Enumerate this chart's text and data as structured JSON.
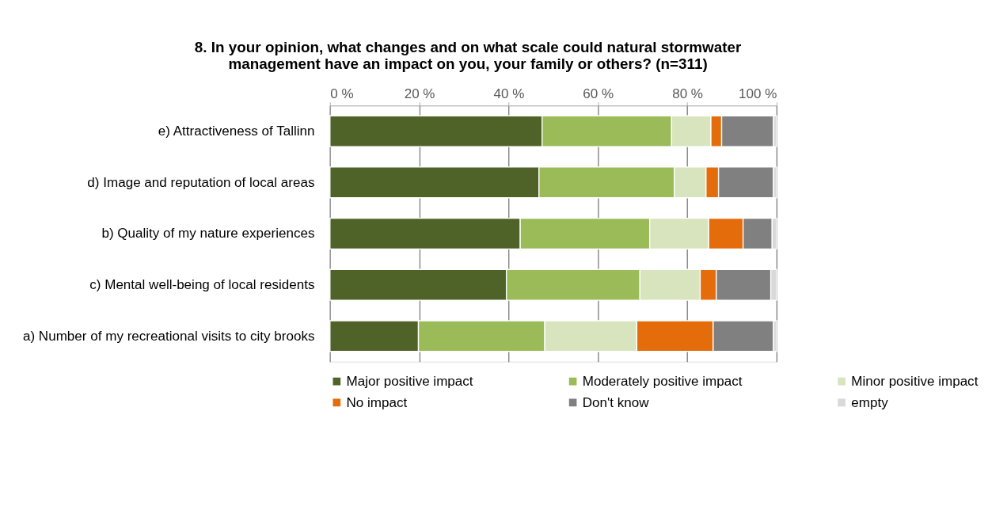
{
  "chart_data": {
    "type": "bar",
    "orientation": "horizontal",
    "stacked": true,
    "title": [
      "8. In your opinion, what changes and on what scale could natural stormwater",
      "management have an impact on you, your family or others?  (n=311)"
    ],
    "categories": [
      "e)  Attractiveness of Tallinn",
      "d)  Image and reputation of local areas",
      "b) Quality of my nature experiences",
      "c)  Mental well-being of local residents",
      "a)   Number of my recreational visits to city brooks"
    ],
    "series": [
      {
        "name": "Major positive impact",
        "color": "#4f6228",
        "values": [
          47.5,
          46.8,
          42.6,
          39.5,
          19.8
        ]
      },
      {
        "name": "Moderately positive impact",
        "color": "#9bbb59",
        "values": [
          29.0,
          30.3,
          29.0,
          29.9,
          28.3
        ]
      },
      {
        "name": "Minor positive impact",
        "color": "#d7e4bd",
        "values": [
          8.8,
          7.1,
          13.2,
          13.5,
          20.6
        ]
      },
      {
        "name": "No impact",
        "color": "#e46c0a",
        "values": [
          2.4,
          2.8,
          7.7,
          3.6,
          17.1
        ]
      },
      {
        "name": "Don't know",
        "color": "#808080",
        "values": [
          11.6,
          12.3,
          6.5,
          12.2,
          13.5
        ]
      },
      {
        "name": "empty",
        "color": "#d9d9d9",
        "values": [
          0.7,
          0.7,
          1.0,
          1.3,
          0.7
        ]
      }
    ],
    "xlim": [
      0,
      100
    ],
    "xticks": [
      {
        "value": 0,
        "label": "0 %"
      },
      {
        "value": 20,
        "label": "20 %"
      },
      {
        "value": 40,
        "label": "40 %"
      },
      {
        "value": 60,
        "label": "60 %"
      },
      {
        "value": 80,
        "label": "80 %"
      },
      {
        "value": 100,
        "label": "100 %"
      }
    ],
    "grid": "x",
    "legend": "bottom"
  }
}
